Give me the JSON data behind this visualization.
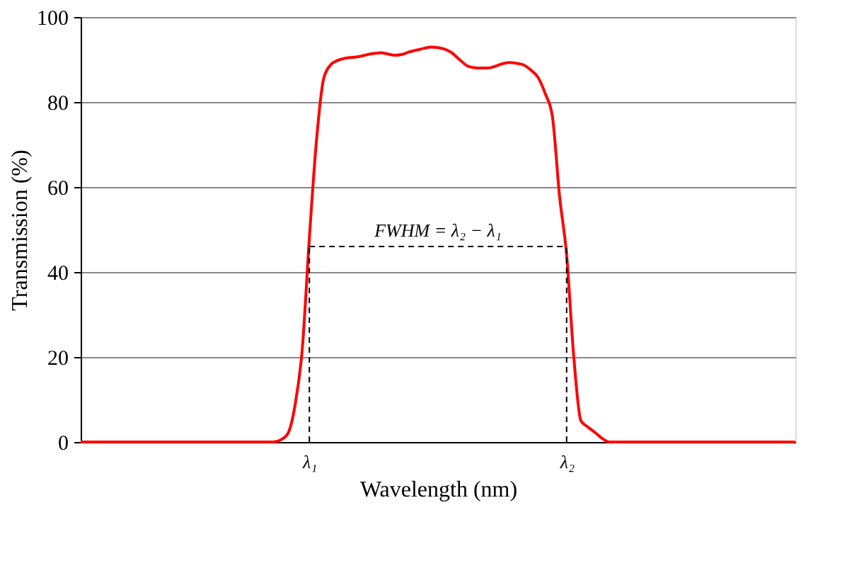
{
  "chart_data": {
    "type": "line",
    "xlabel": "Wavelength (nm)",
    "ylabel": "Transmission (%)",
    "categories": [
      null,
      null,
      null,
      null,
      null,
      null,
      null,
      null,
      null,
      null,
      null,
      null,
      null,
      null,
      null,
      null,
      null,
      null,
      null,
      null,
      null,
      null,
      null,
      null,
      null,
      null,
      null,
      null,
      null,
      null,
      null,
      null,
      "λ₁",
      null,
      null,
      null,
      null,
      null,
      null,
      null,
      null,
      null,
      null,
      null,
      null,
      null,
      null,
      null,
      null,
      null,
      null,
      null,
      null,
      null,
      null,
      null,
      null,
      null,
      null,
      null,
      null,
      null,
      null,
      null,
      null,
      null,
      null,
      null,
      "λ₂",
      null,
      null,
      null,
      null,
      null,
      null,
      null,
      null,
      null,
      null,
      null,
      null,
      null,
      null,
      null,
      null,
      null,
      null,
      null,
      null,
      null,
      null,
      null,
      null,
      null,
      null,
      null,
      null,
      null,
      null,
      null,
      null
    ],
    "ylim": [
      0,
      100
    ],
    "yticks": [
      0,
      20,
      40,
      60,
      80,
      100
    ],
    "grid": "y",
    "marker": "none",
    "series": [
      {
        "color": "#ff0000",
        "line_style": "solid",
        "values": [
          0,
          0,
          0,
          0,
          0,
          0,
          0,
          0,
          0,
          0,
          0,
          0,
          0,
          0,
          0,
          0,
          0,
          0,
          0,
          0,
          0,
          0,
          0,
          0,
          0,
          0,
          0,
          0,
          0.5,
          2,
          8.7,
          21.7,
          48,
          71,
          85.5,
          88.8,
          89.8,
          90.3,
          90.5,
          90.7,
          91.1,
          91.4,
          91.6,
          91.3,
          91,
          91.2,
          91.8,
          92.2,
          92.6,
          92.9,
          92.8,
          92.4,
          91.5,
          90,
          88.6,
          88.1,
          88,
          88,
          88.4,
          89,
          89.3,
          89.1,
          88.7,
          87.5,
          85.8,
          82,
          76.7,
          58,
          44,
          20,
          5,
          3.5,
          2.2,
          0.8,
          0,
          0,
          0,
          0,
          0,
          0,
          0,
          0,
          0,
          0,
          0,
          0,
          0,
          0,
          0,
          0,
          0,
          0,
          0,
          0,
          0,
          0,
          0,
          0,
          0,
          0,
          0
        ]
      },
      {
        "color": "#000000",
        "line_style": "dashed",
        "values": [
          null,
          null,
          null,
          null,
          null,
          null,
          null,
          null,
          null,
          null,
          null,
          null,
          null,
          null,
          null,
          null,
          null,
          null,
          null,
          null,
          null,
          null,
          null,
          null,
          null,
          null,
          null,
          null,
          null,
          null,
          null,
          null,
          46,
          46,
          46,
          46,
          46,
          46,
          46,
          46,
          46,
          46,
          46,
          46,
          46,
          46,
          46,
          46,
          46,
          46,
          46,
          46,
          46,
          46,
          46,
          46,
          46,
          46,
          46,
          46,
          46,
          46,
          46,
          46,
          46,
          46,
          46,
          46,
          46,
          null,
          null,
          null,
          null,
          null,
          null,
          null,
          null,
          null,
          null,
          null,
          null,
          null,
          null,
          null,
          null,
          null,
          null,
          null,
          null,
          null,
          null,
          null,
          null,
          null,
          null,
          null,
          null,
          null,
          null,
          null,
          null
        ],
        "errors": [
          null,
          null,
          null,
          null,
          null,
          null,
          null,
          null,
          null,
          null,
          null,
          null,
          null,
          null,
          null,
          null,
          null,
          null,
          null,
          null,
          null,
          null,
          null,
          null,
          null,
          null,
          null,
          null,
          null,
          null,
          null,
          null,
          [
            0,
            46
          ],
          null,
          null,
          null,
          null,
          null,
          null,
          null,
          null,
          null,
          null,
          null,
          null,
          null,
          null,
          null,
          null,
          null,
          null,
          null,
          null,
          null,
          null,
          null,
          null,
          null,
          null,
          null,
          null,
          null,
          null,
          null,
          null,
          null,
          null,
          null,
          [
            0,
            46
          ],
          null,
          null,
          null,
          null,
          null,
          null,
          null,
          null,
          null,
          null,
          null,
          null,
          null,
          null,
          null,
          null,
          null,
          null,
          null,
          null,
          null,
          null,
          null,
          null,
          null,
          null,
          null,
          null,
          null,
          null,
          null,
          null
        ]
      }
    ],
    "annotations": [
      "FWHM = λ₂ − λ₁"
    ]
  }
}
